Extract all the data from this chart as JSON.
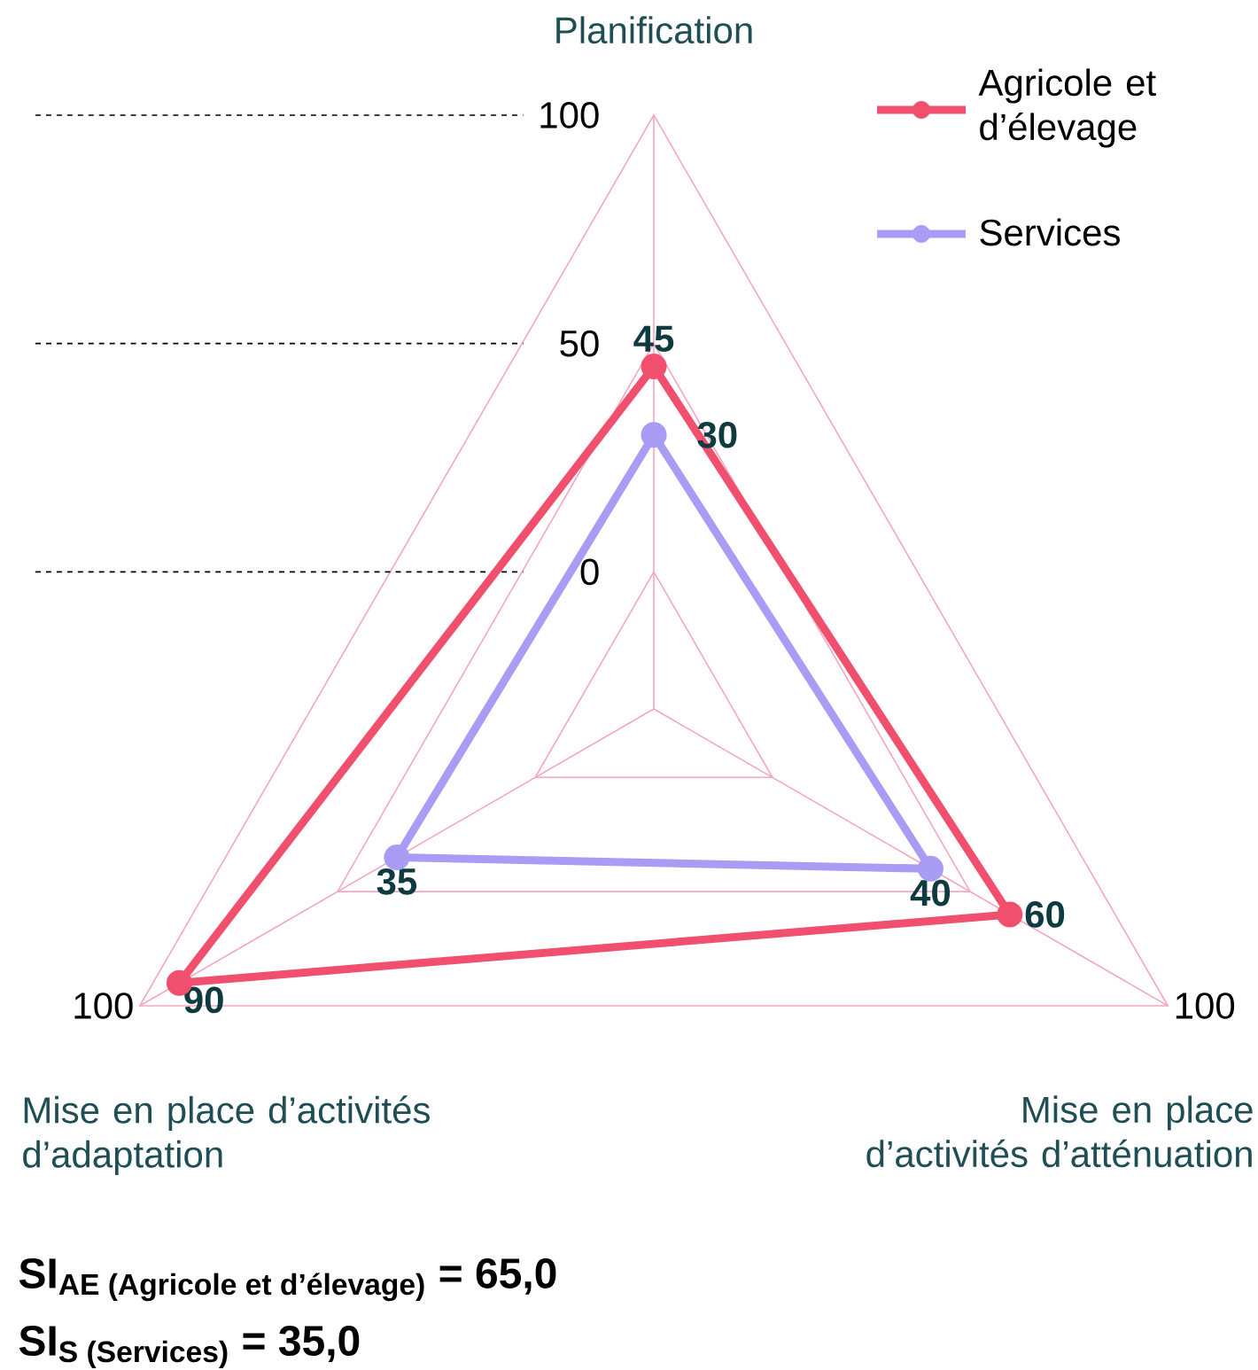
{
  "chart_data": {
    "type": "radar",
    "categories": [
      "Planification",
      "Mise en place d’activités d’atténuation",
      "Mise en place d’activités d’adaptation"
    ],
    "series": [
      {
        "name": "Agricole et d’élevage",
        "color": "#f0506e",
        "values": [
          45,
          60,
          90
        ]
      },
      {
        "name": "Services",
        "color": "#a99cf5",
        "values": [
          30,
          40,
          35
        ]
      }
    ],
    "ylim": [
      -30,
      100
    ],
    "yticks": [
      0,
      50,
      100
    ],
    "grid": true,
    "legend": "top right",
    "marker": "circle",
    "line_style": "solid",
    "data_labels": true,
    "annotations": [
      "100",
      "100",
      "\\textbf{SI}_{\\textbf{AE (Agricole et d’élevage)}}\\textbf{ = 65,0}",
      "\\textbf{SI}_{\\textbf{S (Services)}}\\textbf{ = 35,0}"
    ]
  }
}
